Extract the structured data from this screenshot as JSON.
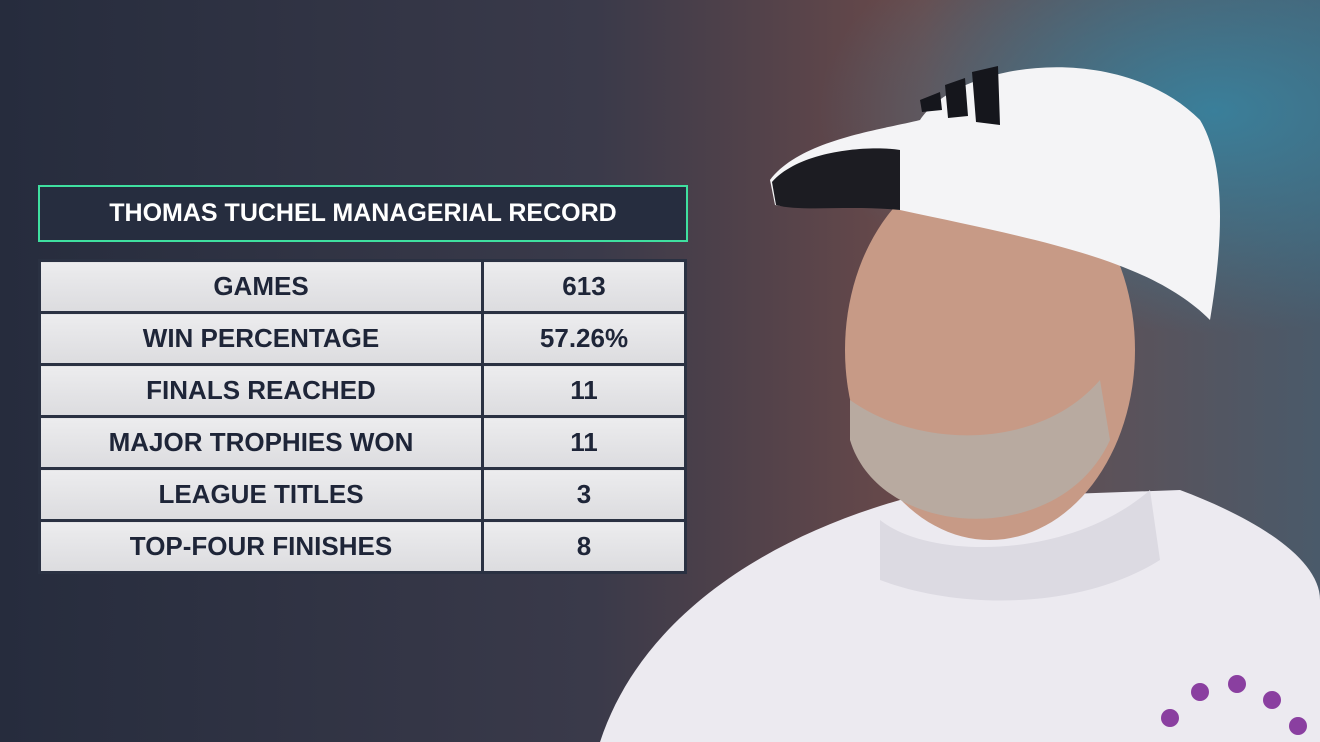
{
  "header": {
    "title": "THOMAS TUCHEL MANAGERIAL RECORD"
  },
  "table": {
    "rows": [
      [
        "GAMES",
        "613"
      ],
      [
        "WIN PERCENTAGE",
        "57.26%"
      ],
      [
        "FINALS REACHED",
        "11"
      ],
      [
        "MAJOR TROPHIES WON",
        "11"
      ],
      [
        "LEAGUE TITLES",
        "3"
      ],
      [
        "TOP-FOUR FINISHES",
        "8"
      ]
    ]
  }
}
